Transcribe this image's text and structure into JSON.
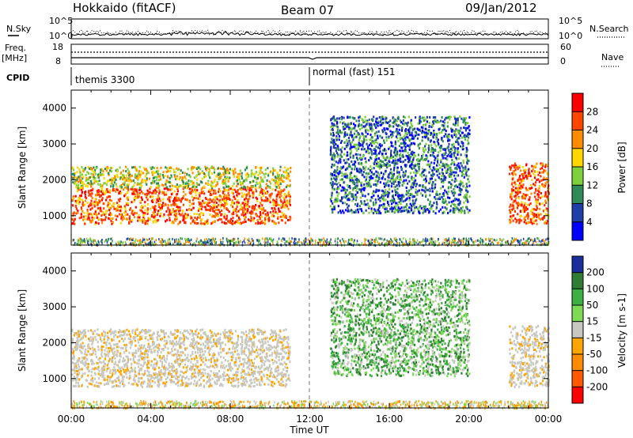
{
  "header": {
    "radar": "Hokkaido (fitACF)",
    "beam": "Beam 07",
    "date": "09/Jan/2012"
  },
  "strips": {
    "nsky_label": "N.Sky",
    "nsky_ticks": [
      "10^5",
      "10^0"
    ],
    "nsearch_label": "N.Search",
    "nsearch_ticks": [
      "10^5",
      "10^0"
    ],
    "freq_label": "Freq.",
    "freq_unit": "[MHz]",
    "freq_ticks": [
      "18",
      "8"
    ],
    "nave_label": "Nave",
    "nave_ticks": [
      "60",
      "0"
    ],
    "cpid_label": "CPID",
    "cpid_segments": [
      {
        "name": "themis 3300",
        "start_hour": 0
      },
      {
        "name": "normal (fast) 151",
        "start_hour": 12
      }
    ]
  },
  "chart_data": [
    {
      "type": "heatmap",
      "panel": "power",
      "xlabel": "Time UT",
      "ylabel": "Slant Range [km]",
      "xlim_hours": [
        0,
        24
      ],
      "ylim_km": [
        180,
        4500
      ],
      "x_ticks": [
        "00:00",
        "04:00",
        "08:00",
        "12:00",
        "16:00",
        "20:00",
        "00:00"
      ],
      "y_ticks": [
        1000,
        2000,
        3000,
        4000
      ],
      "colorbar_label": "Power [dB]",
      "colorbar_ticks": [
        "28",
        "24",
        "20",
        "16",
        "12",
        "8",
        "4"
      ],
      "colorbar_colors": [
        "#ff0000",
        "#ff4500",
        "#ff8c00",
        "#ffd700",
        "#7fd13b",
        "#2e8b57",
        "#1e3fa8",
        "#0000ff"
      ],
      "mode_change_hour": 12,
      "echo_regions": [
        {
          "t0": 0,
          "t1": 11,
          "r0": 800,
          "r1": 1800,
          "level": "strong"
        },
        {
          "t0": 0,
          "t1": 11,
          "r0": 1800,
          "r1": 2400,
          "level": "medium"
        },
        {
          "t0": 22,
          "t1": 24,
          "r0": 800,
          "r1": 2500,
          "level": "strong"
        },
        {
          "t0": 13,
          "t1": 20,
          "r0": 1100,
          "r1": 3800,
          "level": "weak"
        }
      ]
    },
    {
      "type": "heatmap",
      "panel": "velocity",
      "xlabel": "Time UT",
      "ylabel": "Slant Range [km]",
      "xlim_hours": [
        0,
        24
      ],
      "ylim_km": [
        180,
        4500
      ],
      "x_ticks": [
        "00:00",
        "04:00",
        "08:00",
        "12:00",
        "16:00",
        "20:00",
        "00:00"
      ],
      "y_ticks": [
        1000,
        2000,
        3000,
        4000
      ],
      "colorbar_label": "Velocity [m s-1]",
      "colorbar_ticks": [
        "200",
        "100",
        "50",
        "15",
        "-15",
        "-50",
        "-100",
        "-200"
      ],
      "colorbar_colors": [
        "#1a2f9c",
        "#2e7d32",
        "#3cb043",
        "#7ed957",
        "#c8c8c0",
        "#ffa500",
        "#ff8c00",
        "#ff5a00",
        "#ff0000"
      ],
      "ground_scatter_color": "#c8c8c0",
      "mode_change_hour": 12,
      "echo_regions": [
        {
          "t0": 0,
          "t1": 11,
          "r0": 800,
          "r1": 2400,
          "level": "ground"
        },
        {
          "t0": 22,
          "t1": 24,
          "r0": 800,
          "r1": 2500,
          "level": "ground"
        },
        {
          "t0": 13,
          "t1": 20,
          "r0": 1100,
          "r1": 3800,
          "level": "positive"
        }
      ]
    }
  ]
}
